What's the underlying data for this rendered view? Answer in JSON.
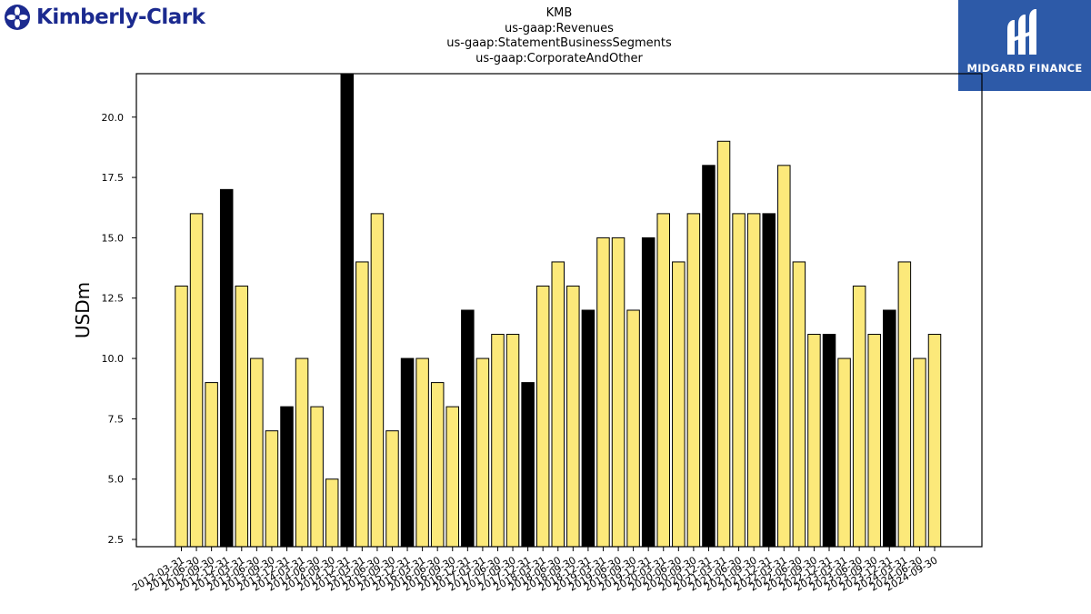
{
  "header": {
    "left_brand": "Kimberly-Clark",
    "right_brand": "MIDGARD FINANCE",
    "left_logo_icon": "kimberly-clark-logo-icon",
    "right_logo_icon": "midgard-finance-logo-icon"
  },
  "chart_data": {
    "type": "bar",
    "title": [
      "KMB",
      "us-gaap:Revenues",
      "us-gaap:StatementBusinessSegments",
      "us-gaap:CorporateAndOther"
    ],
    "ylabel": "USDm",
    "xlabel": "",
    "ylim": [
      2.2,
      21.8
    ],
    "yticks": [
      "2.5",
      "5.0",
      "7.5",
      "10.0",
      "12.5",
      "15.0",
      "17.5",
      "20.0"
    ],
    "grid": false,
    "colors": {
      "normal": "#fce97a",
      "highlight": "#000000",
      "edge": "#000000"
    },
    "categories": [
      "2012-03-31",
      "2012-06-30",
      "2012-09-30",
      "2012-12-31",
      "2013-03-31",
      "2013-06-30",
      "2013-09-30",
      "2013-12-31",
      "2014-03-31",
      "2014-06-30",
      "2014-09-30",
      "2014-12-31",
      "2015-03-31",
      "2015-06-30",
      "2015-09-30",
      "2015-12-31",
      "2016-03-31",
      "2016-06-30",
      "2016-09-30",
      "2016-12-31",
      "2017-03-31",
      "2017-06-30",
      "2017-09-30",
      "2017-12-31",
      "2018-03-31",
      "2018-06-30",
      "2018-09-30",
      "2018-12-31",
      "2019-03-31",
      "2019-06-30",
      "2019-09-30",
      "2019-12-31",
      "2020-03-31",
      "2020-06-30",
      "2020-09-30",
      "2020-12-31",
      "2021-03-31",
      "2021-06-30",
      "2021-09-30",
      "2021-12-31",
      "2022-03-31",
      "2022-06-30",
      "2022-09-30",
      "2022-12-31",
      "2023-03-31",
      "2023-06-30",
      "2023-09-30",
      "2023-12-31",
      "2024-03-31",
      "2024-06-30",
      "2024-09-30"
    ],
    "values": [
      13,
      16,
      9,
      17,
      13,
      10,
      7,
      8,
      10,
      8,
      5,
      22,
      14,
      16,
      7,
      10,
      10,
      9,
      8,
      12,
      10,
      11,
      11,
      9,
      13,
      14,
      13,
      12,
      15,
      15,
      12,
      15,
      16,
      14,
      16,
      18,
      19,
      16,
      16,
      16,
      18,
      14,
      11,
      11,
      10,
      13,
      11,
      12,
      14,
      10,
      11
    ],
    "highlight": [
      false,
      false,
      false,
      true,
      false,
      false,
      false,
      true,
      false,
      false,
      false,
      true,
      false,
      false,
      false,
      true,
      false,
      false,
      false,
      true,
      false,
      false,
      false,
      true,
      false,
      false,
      false,
      true,
      false,
      false,
      false,
      true,
      false,
      false,
      false,
      true,
      false,
      false,
      false,
      true,
      false,
      false,
      false,
      true,
      false,
      false,
      false,
      true,
      false,
      false,
      false
    ]
  }
}
